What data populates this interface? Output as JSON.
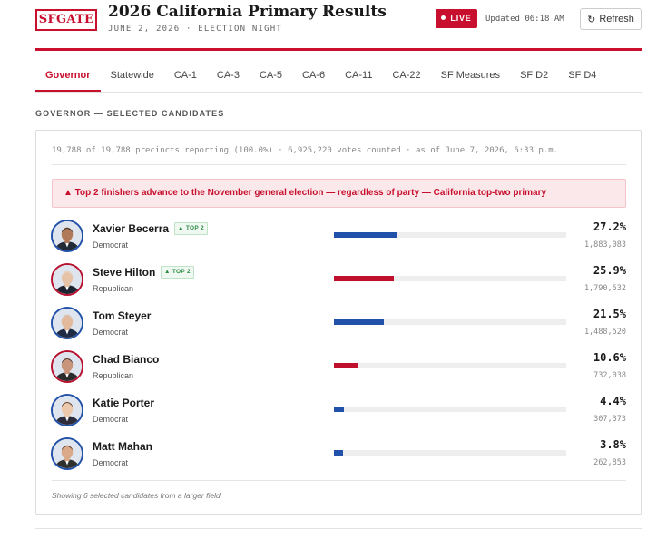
{
  "header": {
    "logo": "SFGATE",
    "title": "2026 California Primary Results",
    "subtitle": "JUNE 2, 2026 · ELECTION NIGHT",
    "live_label": "LIVE",
    "updated": "Updated 06:18 AM",
    "refresh_label": "Refresh",
    "accent_color": "#c8102e"
  },
  "tabs": [
    {
      "label": "Governor",
      "active": true
    },
    {
      "label": "Statewide"
    },
    {
      "label": "CA-1"
    },
    {
      "label": "CA-3"
    },
    {
      "label": "CA-5"
    },
    {
      "label": "CA-6"
    },
    {
      "label": "CA-11"
    },
    {
      "label": "CA-22"
    },
    {
      "label": "SF Measures"
    },
    {
      "label": "SF D2"
    },
    {
      "label": "SF D4"
    }
  ],
  "section_label": "GOVERNOR — SELECTED CANDIDATES",
  "precincts_line": "19,788 of 19,788 precincts reporting (100.0%) · 6,925,220 votes counted · as of June 7, 2026, 6:33 p.m.",
  "banner": "▲ Top 2 finishers advance to the November general election — regardless of party — California top-two primary",
  "party_colors": {
    "Democrat": "#2151a8",
    "Republican": "#c0102e"
  },
  "candidates": [
    {
      "name": "Xavier Becerra",
      "party": "Democrat",
      "badge": "▲ TOP 2",
      "pct": "27.2%",
      "share": 27.2,
      "votes": "1,883,083"
    },
    {
      "name": "Steve Hilton",
      "party": "Republican",
      "badge": "▲ TOP 2",
      "pct": "25.9%",
      "share": 25.9,
      "votes": "1,790,532"
    },
    {
      "name": "Tom Steyer",
      "party": "Democrat",
      "pct": "21.5%",
      "share": 21.5,
      "votes": "1,488,520"
    },
    {
      "name": "Chad Bianco",
      "party": "Republican",
      "pct": "10.6%",
      "share": 10.6,
      "votes": "732,038"
    },
    {
      "name": "Katie Porter",
      "party": "Democrat",
      "pct": "4.4%",
      "share": 4.4,
      "votes": "307,373"
    },
    {
      "name": "Matt Mahan",
      "party": "Democrat",
      "pct": "3.8%",
      "share": 3.8,
      "votes": "262,853"
    }
  ],
  "footnote": "Showing 6 selected candidates from a larger field."
}
